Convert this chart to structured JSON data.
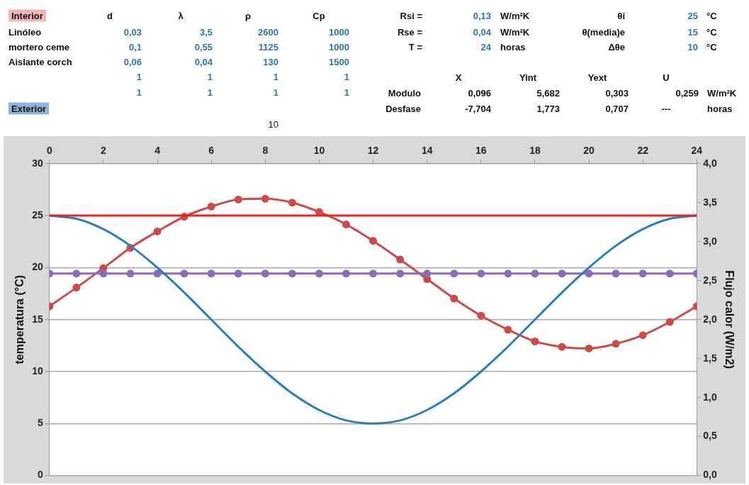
{
  "chart_data": [
    {
      "type": "other",
      "annotations": [
        "Interior",
        "d",
        "λ",
        "ρ",
        "Cp",
        "Linóleo",
        "0,03",
        "3,5",
        "2600",
        "1000",
        "mortero ceme",
        "0,1",
        "0,55",
        "1125",
        "1000",
        "Aislante corch",
        "0,06",
        "0,04",
        "130",
        "1500",
        "1",
        "1",
        "1",
        "1",
        "1",
        "1",
        "1",
        "1",
        "Exterior",
        "10",
        "Rsi =",
        "0,13",
        "W/m²K",
        "θi",
        "25",
        "°C",
        "Rse =",
        "0,04",
        "W/m²K",
        "θ(media)e",
        "15",
        "°C",
        "T =",
        "24",
        "horas",
        "Δθe",
        "10",
        "°C",
        "X",
        "Yint",
        "Yext",
        "U",
        "Modulo",
        "0,096",
        "5,682",
        "0,303",
        "0,259",
        "W/m²K",
        "Desfase",
        "-7,704",
        "1,773",
        "0,707",
        "---",
        "horas"
      ]
    },
    {
      "type": "line",
      "ylabel": "temperatura (°C)",
      "y2label": "Flujo calor (W/m2)",
      "grid": "y",
      "x": [
        0,
        1,
        2,
        3,
        4,
        5,
        6,
        7,
        8,
        9,
        10,
        11,
        12,
        13,
        14,
        15,
        16,
        17,
        18,
        19,
        20,
        21,
        22,
        23,
        24
      ],
      "xlim": [
        0,
        24
      ],
      "xticks": [
        0,
        2,
        4,
        6,
        8,
        10,
        12,
        14,
        16,
        18,
        20,
        22,
        24
      ],
      "ylim": [
        0,
        30
      ],
      "yticks": [
        0,
        5,
        10,
        15,
        20,
        25,
        30
      ],
      "y2lim": [
        0,
        4
      ],
      "y2ticks": [
        {
          "value": 0,
          "label": "0,0"
        },
        {
          "value": 0.5,
          "label": "0,5"
        },
        {
          "value": 1,
          "label": "1,0"
        },
        {
          "value": 1.5,
          "label": "1,5"
        },
        {
          "value": 2,
          "label": "2,0"
        },
        {
          "value": 2.5,
          "label": "2,5"
        },
        {
          "value": 3,
          "label": "3,0"
        },
        {
          "value": 3.5,
          "label": "3,5"
        },
        {
          "value": 4,
          "label": "4,0"
        }
      ],
      "series": [
        {
          "color": "#e8231f",
          "marker": "none",
          "x": [
            0,
            24
          ],
          "values": [
            25,
            25
          ]
        },
        {
          "color": "#2a7fba",
          "marker": "none",
          "values": [
            25,
            24.7,
            23.7,
            22.1,
            20,
            17.6,
            15,
            12.4,
            10,
            7.9,
            6.3,
            5.3,
            5,
            5.3,
            6.3,
            7.9,
            10,
            12.4,
            15,
            17.6,
            20,
            22.1,
            23.7,
            24.7,
            25
          ]
        },
        {
          "color": "#8e6bb8",
          "marker": "circle",
          "axis": "y2",
          "values": [
            2.59,
            2.59,
            2.59,
            2.59,
            2.59,
            2.59,
            2.59,
            2.59,
            2.59,
            2.59,
            2.59,
            2.59,
            2.59,
            2.59,
            2.59,
            2.59,
            2.59,
            2.59,
            2.59,
            2.59,
            2.59,
            2.59,
            2.59,
            2.59,
            2.59
          ]
        },
        {
          "color": "#cd4a4a",
          "marker": "circle",
          "axis": "y2",
          "values": [
            2.17,
            2.41,
            2.66,
            2.92,
            3.13,
            3.32,
            3.45,
            3.54,
            3.55,
            3.5,
            3.38,
            3.22,
            3.01,
            2.77,
            2.52,
            2.27,
            2.05,
            1.87,
            1.72,
            1.65,
            1.63,
            1.69,
            1.8,
            1.97,
            2.17
          ]
        }
      ]
    }
  ]
}
